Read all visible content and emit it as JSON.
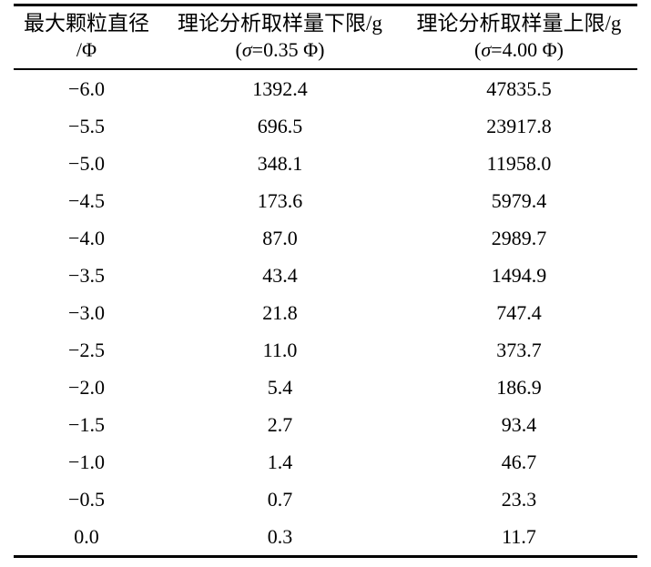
{
  "page": {
    "background": "#ffffff",
    "text_color": "#000000"
  },
  "table": {
    "columns": [
      {
        "line1": "最大颗粒直径",
        "line2_pre": "/Φ",
        "line2_sigma": "",
        "line2_post": ""
      },
      {
        "line1": "理论分析取样量下限/g",
        "line2_pre": "(",
        "line2_sigma": "σ",
        "line2_post": "=0.35 Φ)"
      },
      {
        "line1": "理论分析取样量上限/g",
        "line2_pre": "(",
        "line2_sigma": "σ",
        "line2_post": "=4.00 Φ)"
      }
    ],
    "rows": [
      [
        "−6.0",
        "1392.4",
        "47835.5"
      ],
      [
        "−5.5",
        "696.5",
        "23917.8"
      ],
      [
        "−5.0",
        "348.1",
        "11958.0"
      ],
      [
        "−4.5",
        "173.6",
        "5979.4"
      ],
      [
        "−4.0",
        "87.0",
        "2989.7"
      ],
      [
        "−3.5",
        "43.4",
        "1494.9"
      ],
      [
        "−3.0",
        "21.8",
        "747.4"
      ],
      [
        "−2.5",
        "11.0",
        "373.7"
      ],
      [
        "−2.0",
        "5.4",
        "186.9"
      ],
      [
        "−1.5",
        "2.7",
        "93.4"
      ],
      [
        "−1.0",
        "1.4",
        "46.7"
      ],
      [
        "−0.5",
        "0.7",
        "23.3"
      ],
      [
        "0.0",
        "0.3",
        "11.7"
      ]
    ]
  }
}
